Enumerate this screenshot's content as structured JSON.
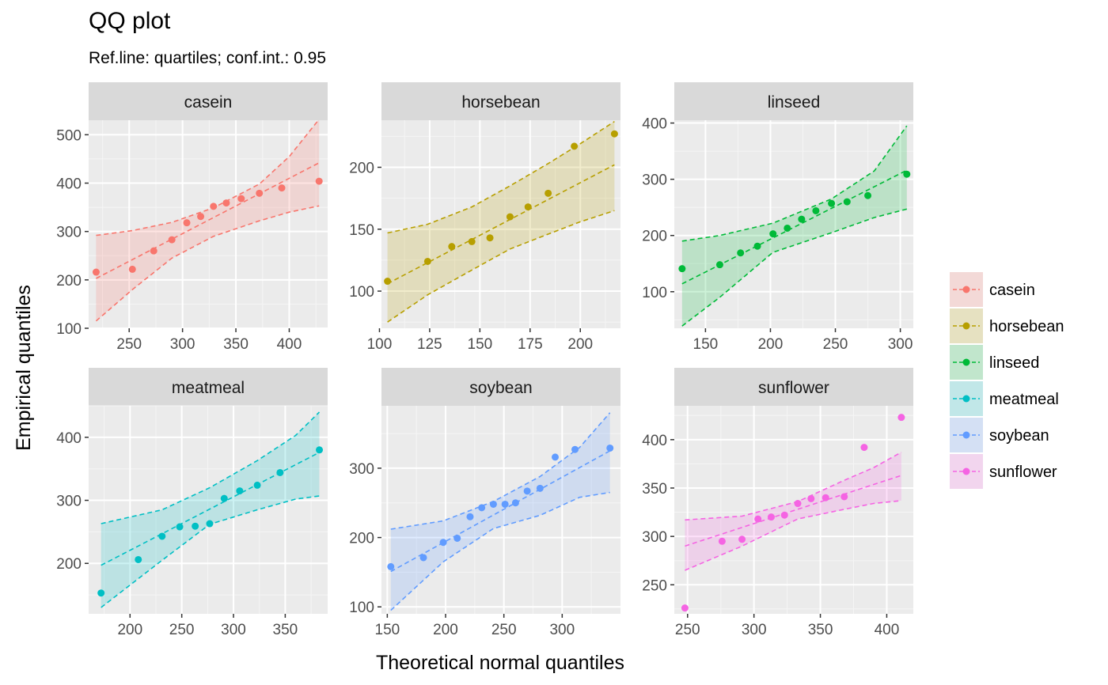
{
  "title": "QQ plot",
  "subtitle": "Ref.line: quartiles; conf.int.: 0.95",
  "chart_data": {
    "type": "scatter",
    "title": "QQ plot",
    "subtitle": "Ref.line: quartiles; conf.int.: 0.95",
    "xlabel": "Theoretical normal quantiles",
    "ylabel": "Empirical quantiles",
    "grid": true,
    "legend_position": "right",
    "colors": {
      "casein": "#F8766D",
      "horsebean": "#B79F00",
      "linseed": "#00BA38",
      "meatmeal": "#00BFC4",
      "soybean": "#619CFF",
      "sunflower": "#F564E3"
    },
    "panels": [
      {
        "name": "casein",
        "xlim": [
          212,
          436
        ],
        "ylim": [
          100,
          530
        ],
        "xticks": [
          250,
          300,
          350,
          400
        ],
        "yticks": [
          100,
          200,
          300,
          400,
          500
        ],
        "points": [
          [
            219,
            216
          ],
          [
            253,
            222
          ],
          [
            273,
            260
          ],
          [
            290,
            283
          ],
          [
            304,
            318
          ],
          [
            317,
            331
          ],
          [
            329,
            352
          ],
          [
            341,
            359
          ],
          [
            355,
            368
          ],
          [
            372,
            379
          ],
          [
            393,
            390
          ],
          [
            428,
            404
          ]
        ],
        "ref_line": [
          [
            219,
            203
          ],
          [
            428,
            442
          ]
        ],
        "band_upper": [
          [
            219,
            292
          ],
          [
            253,
            302
          ],
          [
            290,
            319
          ],
          [
            329,
            349
          ],
          [
            372,
            398
          ],
          [
            400,
            455
          ],
          [
            428,
            532
          ]
        ],
        "band_lower": [
          [
            219,
            115
          ],
          [
            253,
            180
          ],
          [
            290,
            245
          ],
          [
            329,
            290
          ],
          [
            372,
            322
          ],
          [
            400,
            340
          ],
          [
            428,
            353
          ]
        ]
      },
      {
        "name": "horsebean",
        "xlim": [
          101,
          220
        ],
        "ylim": [
          70,
          238
        ],
        "xticks": [
          100,
          125,
          150,
          175,
          200
        ],
        "yticks": [
          100,
          150,
          200
        ],
        "points": [
          [
            104,
            108
          ],
          [
            124,
            124
          ],
          [
            136,
            136
          ],
          [
            146,
            140
          ],
          [
            155,
            143
          ],
          [
            165,
            160
          ],
          [
            174,
            168
          ],
          [
            184,
            179
          ],
          [
            197,
            217
          ],
          [
            217,
            227
          ]
        ],
        "ref_line": [
          [
            104,
            106
          ],
          [
            217,
            202
          ]
        ],
        "band_upper": [
          [
            104,
            147
          ],
          [
            124,
            154
          ],
          [
            146,
            168
          ],
          [
            165,
            185
          ],
          [
            184,
            203
          ],
          [
            200,
            219
          ],
          [
            217,
            237
          ]
        ],
        "band_lower": [
          [
            104,
            75
          ],
          [
            124,
            97
          ],
          [
            146,
            117
          ],
          [
            165,
            134
          ],
          [
            184,
            146
          ],
          [
            200,
            156
          ],
          [
            217,
            165
          ]
        ]
      },
      {
        "name": "linseed",
        "xlim": [
          126,
          310
        ],
        "ylim": [
          35,
          405
        ],
        "xticks": [
          150,
          200,
          250,
          300
        ],
        "yticks": [
          100,
          200,
          300,
          400
        ],
        "points": [
          [
            132,
            141
          ],
          [
            161,
            148
          ],
          [
            177,
            169
          ],
          [
            190,
            181
          ],
          [
            202,
            203
          ],
          [
            213,
            213
          ],
          [
            224,
            229
          ],
          [
            235,
            244
          ],
          [
            247,
            257
          ],
          [
            259,
            260
          ],
          [
            275,
            271
          ],
          [
            305,
            309
          ]
        ],
        "ref_line": [
          [
            132,
            114
          ],
          [
            305,
            316
          ]
        ],
        "band_upper": [
          [
            132,
            190
          ],
          [
            161,
            200
          ],
          [
            202,
            222
          ],
          [
            247,
            265
          ],
          [
            280,
            315
          ],
          [
            305,
            395
          ]
        ],
        "band_lower": [
          [
            132,
            39
          ],
          [
            161,
            90
          ],
          [
            202,
            170
          ],
          [
            247,
            205
          ],
          [
            280,
            232
          ],
          [
            305,
            247
          ]
        ]
      },
      {
        "name": "meatmeal",
        "xlim": [
          160,
          391
        ],
        "ylim": [
          120,
          450
        ],
        "xticks": [
          200,
          250,
          300,
          350
        ],
        "yticks": [
          200,
          300,
          400
        ],
        "points": [
          [
            172,
            153
          ],
          [
            208,
            206
          ],
          [
            231,
            243
          ],
          [
            248,
            258
          ],
          [
            263,
            259
          ],
          [
            277,
            263
          ],
          [
            291,
            303
          ],
          [
            306,
            315
          ],
          [
            323,
            324
          ],
          [
            345,
            344
          ],
          [
            383,
            380
          ]
        ],
        "ref_line": [
          [
            172,
            197
          ],
          [
            383,
            376
          ]
        ],
        "band_upper": [
          [
            172,
            263
          ],
          [
            231,
            285
          ],
          [
            277,
            320
          ],
          [
            323,
            363
          ],
          [
            360,
            403
          ],
          [
            383,
            440
          ]
        ],
        "band_lower": [
          [
            172,
            130
          ],
          [
            231,
            205
          ],
          [
            277,
            262
          ],
          [
            323,
            285
          ],
          [
            360,
            302
          ],
          [
            383,
            307
          ]
        ]
      },
      {
        "name": "soybean",
        "xlim": [
          145,
          350
        ],
        "ylim": [
          90,
          390
        ],
        "xticks": [
          150,
          200,
          250,
          300
        ],
        "yticks": [
          100,
          200,
          300
        ],
        "points": [
          [
            153,
            158
          ],
          [
            181,
            171
          ],
          [
            198,
            193
          ],
          [
            210,
            199
          ],
          [
            221,
            230
          ],
          [
            231,
            243
          ],
          [
            241,
            248
          ],
          [
            251,
            248
          ],
          [
            260,
            250
          ],
          [
            270,
            267
          ],
          [
            281,
            271
          ],
          [
            294,
            316
          ],
          [
            311,
            327
          ],
          [
            341,
            329
          ]
        ],
        "ref_line": [
          [
            153,
            151
          ],
          [
            341,
            325
          ]
        ],
        "band_upper": [
          [
            153,
            212
          ],
          [
            198,
            224
          ],
          [
            241,
            252
          ],
          [
            281,
            288
          ],
          [
            315,
            330
          ],
          [
            341,
            380
          ]
        ],
        "band_lower": [
          [
            153,
            95
          ],
          [
            198,
            165
          ],
          [
            241,
            213
          ],
          [
            281,
            232
          ],
          [
            315,
            258
          ],
          [
            341,
            265
          ]
        ]
      },
      {
        "name": "sunflower",
        "xlim": [
          240,
          420
        ],
        "ylim": [
          220,
          435
        ],
        "xticks": [
          250,
          300,
          350,
          400
        ],
        "yticks": [
          250,
          300,
          350,
          400
        ],
        "points": [
          [
            248,
            226
          ],
          [
            276,
            295
          ],
          [
            291,
            297
          ],
          [
            303,
            318
          ],
          [
            313,
            320
          ],
          [
            323,
            322
          ],
          [
            333,
            334
          ],
          [
            343,
            339
          ],
          [
            354,
            340
          ],
          [
            368,
            341
          ],
          [
            383,
            392
          ],
          [
            411,
            423
          ]
        ],
        "ref_line": [
          [
            248,
            290
          ],
          [
            411,
            363
          ]
        ],
        "band_upper": [
          [
            248,
            317
          ],
          [
            291,
            321
          ],
          [
            333,
            336
          ],
          [
            368,
            358
          ],
          [
            390,
            371
          ],
          [
            411,
            387
          ]
        ],
        "band_lower": [
          [
            248,
            265
          ],
          [
            291,
            290
          ],
          [
            333,
            318
          ],
          [
            368,
            328
          ],
          [
            390,
            334
          ],
          [
            411,
            337
          ]
        ]
      }
    ]
  }
}
